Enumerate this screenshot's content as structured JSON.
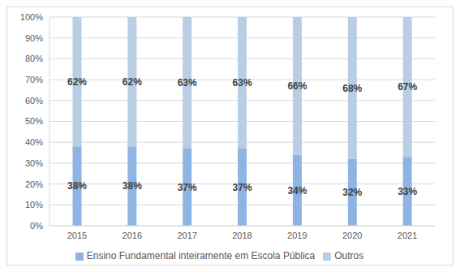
{
  "chart_data": {
    "type": "bar",
    "stacked": true,
    "data_labels": true,
    "grid": true,
    "legend": "bottom",
    "categories": [
      "2015",
      "2016",
      "2017",
      "2018",
      "2019",
      "2020",
      "2021"
    ],
    "series": [
      {
        "name": "Ensino Fundamental inteiramente em Escola Pública",
        "color": "#8eb4e3",
        "values": [
          38,
          38,
          37,
          37,
          34,
          32,
          33
        ],
        "value_labels": [
          "38%",
          "38%",
          "37%",
          "37%",
          "34%",
          "32%",
          "33%"
        ]
      },
      {
        "name": "Outros",
        "color": "#b9cde5",
        "values": [
          62,
          62,
          63,
          63,
          66,
          68,
          67
        ],
        "value_labels": [
          "62%",
          "62%",
          "63%",
          "63%",
          "66%",
          "68%",
          "67%"
        ]
      }
    ],
    "ylim": [
      0,
      100
    ],
    "yticks": [
      {
        "value": 0,
        "label": "0%"
      },
      {
        "value": 10,
        "label": "10%"
      },
      {
        "value": 20,
        "label": "20%"
      },
      {
        "value": 30,
        "label": "30%"
      },
      {
        "value": 40,
        "label": "40%"
      },
      {
        "value": 50,
        "label": "50%"
      },
      {
        "value": 60,
        "label": "60%"
      },
      {
        "value": 70,
        "label": "70%"
      },
      {
        "value": 80,
        "label": "80%"
      },
      {
        "value": 90,
        "label": "90%"
      },
      {
        "value": 100,
        "label": "100%"
      }
    ]
  }
}
